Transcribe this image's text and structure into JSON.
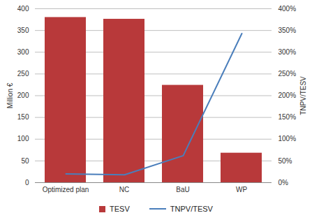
{
  "chart_data": {
    "type": "bar",
    "categories": [
      "Optimized plan",
      "NC",
      "BaU",
      "WP"
    ],
    "series": [
      {
        "name": "TESV",
        "type": "bar",
        "color": "#b8393a",
        "values": [
          380,
          376,
          224,
          68
        ]
      },
      {
        "name": "TNPV/TESV",
        "type": "line",
        "axis": "y2",
        "color": "#4a7ebb",
        "values": [
          20,
          18,
          62,
          343
        ]
      }
    ],
    "ylabel": "Million €",
    "y2label": "TNPV/TESV",
    "ylim": [
      0,
      400
    ],
    "yticks": [
      0,
      50,
      100,
      150,
      200,
      250,
      300,
      350,
      400
    ],
    "y2lim": [
      0,
      400
    ],
    "y2ticks": [
      {
        "value": 0,
        "label": "0%"
      },
      {
        "value": 50,
        "label": "50%"
      },
      {
        "value": 100,
        "label": "100%"
      },
      {
        "value": 150,
        "label": "150%"
      },
      {
        "value": 200,
        "label": "200%"
      },
      {
        "value": 250,
        "label": "250%"
      },
      {
        "value": 300,
        "label": "300%"
      },
      {
        "value": 350,
        "label": "350%"
      },
      {
        "value": 400,
        "label": "400%"
      }
    ],
    "grid": true,
    "legend": "bottom"
  }
}
